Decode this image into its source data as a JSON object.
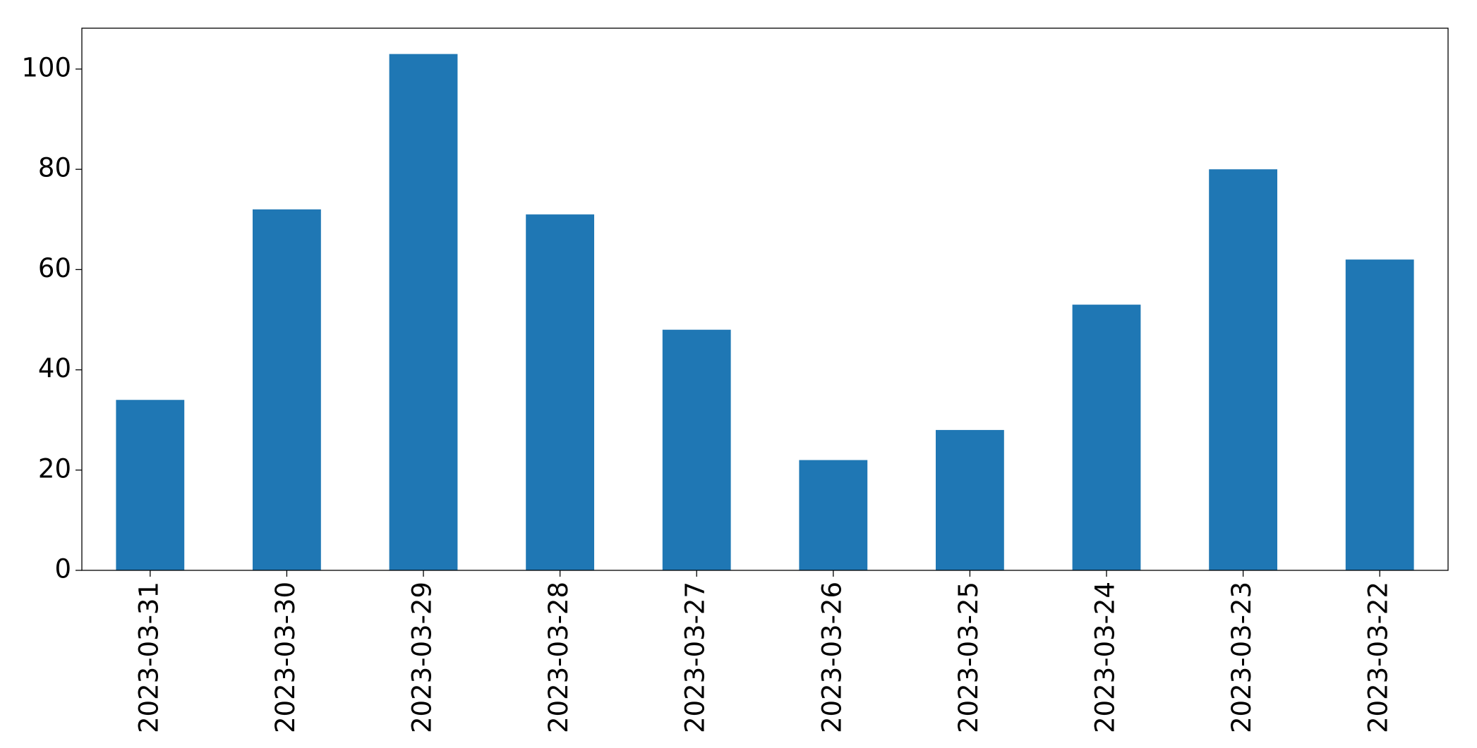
{
  "chart_data": {
    "type": "bar",
    "categories": [
      "2023-03-31",
      "2023-03-30",
      "2023-03-29",
      "2023-03-28",
      "2023-03-27",
      "2023-03-26",
      "2023-03-25",
      "2023-03-24",
      "2023-03-23",
      "2023-03-22"
    ],
    "values": [
      34,
      72,
      103,
      71,
      48,
      22,
      28,
      53,
      80,
      62
    ],
    "color": "#1f77b4",
    "ylim": [
      0,
      108.15
    ],
    "yticks": [
      0,
      20,
      40,
      60,
      80,
      100
    ],
    "grid": false
  }
}
